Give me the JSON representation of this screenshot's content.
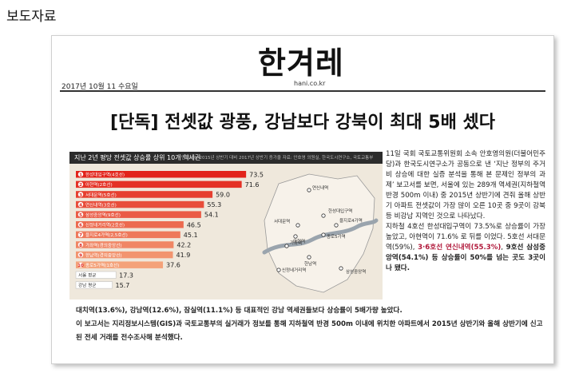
{
  "header_label": "보도자료",
  "newspaper": {
    "logo": "한겨레",
    "url": "hani.co.kr",
    "date": "2017년 10월 11 수요일"
  },
  "headline": "[단독] 전셋값 광풍, 강남보다 강북이 최대 5배 셌다",
  "chart_data": {
    "type": "bar",
    "title": "지난 2년 평당 전셋값 상승률 상위 10개 역세권",
    "note": "단위: %, 2015년 상반기 대비 2017년 상반기 증가율 자료: 안호영 의원실, 한국도시연구소, 국토교통부",
    "categories": [
      "한성대입구역(4호선)",
      "아현역(2호선)",
      "서대문역(5호선)",
      "연신내역(3호선)",
      "삼성중앙역(9호선)",
      "신정네거리역(2호선)",
      "을지로4가역(2,5호선)",
      "가좌역(경의중앙선)",
      "한남역(경의중앙선)",
      "종로5가역(1호선)",
      "서울 평균",
      "강남 평균"
    ],
    "values": [
      73.5,
      71.6,
      59.0,
      55.3,
      54.1,
      46.5,
      45.1,
      42.2,
      41.9,
      37.6,
      17.3,
      15.7
    ],
    "value_labels": [
      "73.5",
      "71.6",
      "59.0",
      "55.3",
      "54.1",
      "46.5",
      "45.1",
      "42.2",
      "41.9",
      "37.6",
      "17.3",
      "15.7"
    ],
    "colors": {
      "top": "#e2231a",
      "bottom": "#f4a27a",
      "average": "#ffffff",
      "accent": "#e2231a"
    },
    "map_labels": [
      "연신내역",
      "서대문역",
      "아현역",
      "종로5가역",
      "한성대입구역",
      "을지로4가역",
      "가좌역",
      "신정네거리역",
      "삼성중앙역",
      "한남역"
    ]
  },
  "body_paragraphs": [
    {
      "parts": [
        {
          "t": "11일 국회 국토교통위원회 소속 안호영의원(더불어민주당)과 한국도시연구소가 공동으로 낸 ‘지난 정부의 주거비 상승에 대한 실증 분석을 통해 본 문제인 정부의 과제’ 보고서를 보면, 서울에 있는 289개 역세권(지하철역 반경 500m 이내) 중 2015년 상반기에 견줘 올해 상반기 아파트 전셋값이 가장 많이 오른 10곳 중 9곳이 강북 등 비강남 지역인 것으로 나타났다.",
          "c": ""
        }
      ]
    },
    {
      "parts": [
        {
          "t": "지하철 4호선 한성대입구역이 73.5%로 상승률이 가장 높았고, 아현역이 71.6% 로 뒤를 이었다. 5호선 서대문역(59%), ",
          "c": ""
        },
        {
          "t": "3·6호선 연신내역(55.3%)",
          "c": "hl-red hl-bold"
        },
        {
          "t": ", ",
          "c": ""
        },
        {
          "t": "9호선 삼성중앙역(54.1%) 등 상승률이 50%를 넘는 곳도 3곳이나 됐다.",
          "c": "hl-bold"
        }
      ]
    }
  ],
  "bottom_paragraphs": [
    "대치역(13.6%), 강남역(12.6%), 잠실역(11.1%) 등 대표적인 강남 역세권들보다 상승률이 5배가량 높았다.",
    "이 보고서는 지리정보시스템(GIS)과 국토교통부의 실거래가 정보를 통해 지하철역 반경 500m 이내에 위치한 아파트에서 2015년 상반기와 올해 상반기에 신고된 전세 거래를 전수조사해 분석했다."
  ]
}
